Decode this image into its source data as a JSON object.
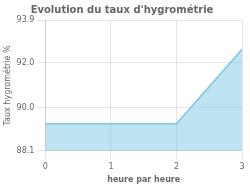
{
  "chart_data": {
    "type": "area",
    "title": "Evolution du taux d'hygrométrie",
    "xlabel": "heure par heure",
    "ylabel": "Taux hygrométrie %",
    "x": [
      0,
      2,
      2,
      3
    ],
    "values": [
      89.3,
      89.3,
      89.3,
      92.6
    ],
    "color": "#7ec8e3",
    "xlim": [
      0,
      3
    ],
    "ylim": [
      88.1,
      93.9
    ],
    "xticks": [
      0,
      1,
      2,
      3
    ],
    "yticks": [
      88.1,
      {
        "value": 90.0,
        "label": "90.0"
      },
      {
        "value": 92.0,
        "label": "92.0"
      },
      93.9
    ],
    "grid": true
  }
}
